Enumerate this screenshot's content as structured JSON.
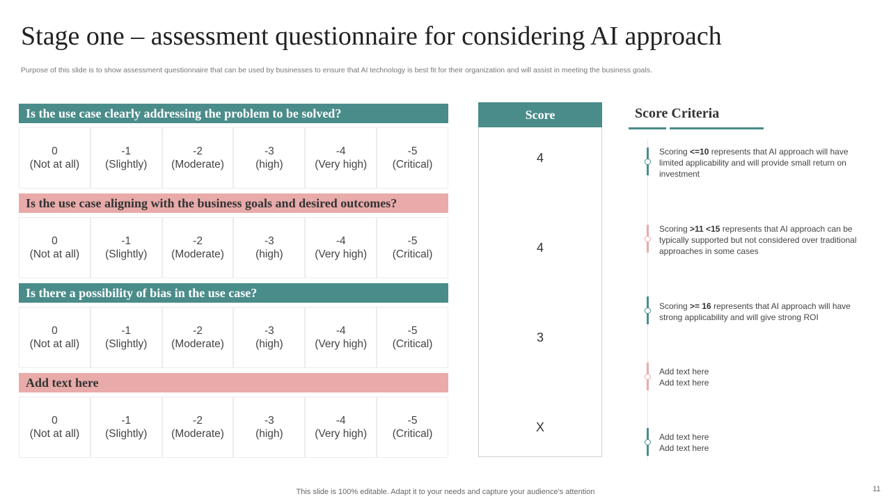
{
  "title": "Stage one – assessment questionnaire for considering AI approach",
  "subtitle": "Purpose of this slide is to show assessment questionnaire that can be used by businesses to ensure that AI technology is best fit for their organization and will assist in meeting the business goals.",
  "questions": [
    {
      "text": "Is the use case clearly addressing the problem to be solved?",
      "color": "#4a8c8a"
    },
    {
      "text": "Is the use case aligning with the business goals and desired outcomes?",
      "color": "#e8abaa"
    },
    {
      "text": "Is there a possibility of bias in the use case?",
      "color": "#4a8c8a"
    },
    {
      "text": "Add text here",
      "color": "#e8abaa"
    }
  ],
  "options": [
    {
      "value": "0",
      "label": "(Not at all)"
    },
    {
      "value": "-1",
      "label": "(Slightly)"
    },
    {
      "value": "-2",
      "label": "(Moderate)"
    },
    {
      "value": "-3",
      "label": "(high)"
    },
    {
      "value": "-4",
      "label": "(Very high)"
    },
    {
      "value": "-5",
      "label": "(Critical)"
    }
  ],
  "score": {
    "header": "Score",
    "values": [
      "4",
      "4",
      "3",
      "X"
    ]
  },
  "criteria": {
    "title": "Score Criteria",
    "items": [
      {
        "prefix": "Scoring ",
        "bold": "<=10",
        "rest": " represents that AI approach will have limited applicability and will provide small return on investment",
        "color": "#4a8c8a"
      },
      {
        "prefix": "Scoring ",
        "bold": ">11 <15",
        "rest": " represents that AI approach can be typically supported but not considered over traditional approaches in some cases",
        "color": "#e8abaa"
      },
      {
        "prefix": "Scoring ",
        "bold": ">= 16",
        "rest": " represents that AI approach will have strong applicability and will give strong ROI",
        "color": "#4a8c8a"
      },
      {
        "line1": "Add text here",
        "line2": "Add text here",
        "color": "#e8abaa"
      },
      {
        "line1": "Add text here",
        "line2": "Add text here",
        "color": "#4a8c8a"
      }
    ]
  },
  "footer": "This slide is 100% editable. Adapt it to your needs and capture your audience's attention",
  "page_number": "11"
}
